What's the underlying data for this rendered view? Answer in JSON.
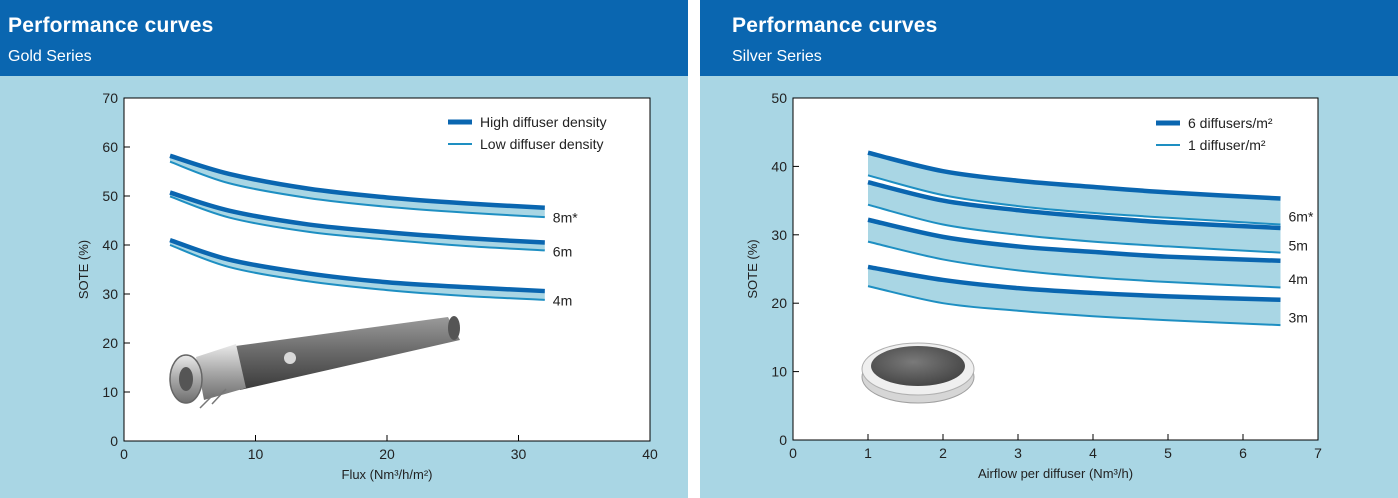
{
  "colors": {
    "banner": "#0a66b0",
    "panel_background": "#a9d6e4",
    "band_fill": "#a9d6e4",
    "high_line": "#0a66b0",
    "low_line": "#1e8fc2"
  },
  "icons": {
    "left_product": "tubular-membrane-diffuser-image",
    "right_product": "disc-diffuser-image"
  },
  "left_panel": {
    "title": "Performance curves",
    "subtitle": "Gold Series"
  },
  "right_panel": {
    "title": "Performance curves",
    "subtitle": "Silver Series"
  },
  "chart_data": [
    {
      "type": "line",
      "title": "",
      "xlabel": "Flux (Nm³/h/m²)",
      "ylabel": "SOTE (%)",
      "xlim": [
        0,
        40
      ],
      "ylim": [
        0,
        70
      ],
      "xticks": [
        0,
        10,
        20,
        30,
        40
      ],
      "yticks": [
        0,
        10,
        20,
        30,
        40,
        50,
        60,
        70
      ],
      "grid": false,
      "legend_position": "top-right",
      "legend": [
        "High diffuser density",
        "Low diffuser density"
      ],
      "series": [
        {
          "label": "8m*",
          "x": [
            3.5,
            8,
            14,
            20,
            26,
            32
          ],
          "high": [
            58.2,
            54.5,
            51.5,
            49.7,
            48.5,
            47.6
          ],
          "low": [
            57.0,
            52.6,
            49.6,
            47.8,
            46.6,
            45.7
          ]
        },
        {
          "label": "6m",
          "x": [
            3.5,
            8,
            14,
            20,
            26,
            32
          ],
          "high": [
            50.7,
            47.0,
            44.2,
            42.6,
            41.4,
            40.5
          ],
          "low": [
            49.9,
            45.6,
            42.7,
            41.1,
            39.8,
            38.9
          ]
        },
        {
          "label": "4m",
          "x": [
            3.5,
            8,
            14,
            20,
            26,
            32
          ],
          "high": [
            41.0,
            37.0,
            34.2,
            32.4,
            31.4,
            30.6
          ],
          "low": [
            40.0,
            35.5,
            32.6,
            30.8,
            29.6,
            28.8
          ]
        }
      ]
    },
    {
      "type": "line",
      "title": "",
      "xlabel": "Airflow per diffuser (Nm³/h)",
      "ylabel": "SOTE (%)",
      "xlim": [
        0,
        7
      ],
      "ylim": [
        0,
        50
      ],
      "xticks": [
        0,
        1,
        2,
        3,
        4,
        5,
        6,
        7
      ],
      "yticks": [
        0,
        10,
        20,
        30,
        40,
        50
      ],
      "grid": false,
      "legend_position": "top-right",
      "legend": [
        "6 diffusers/m²",
        "1 diffuser/m²"
      ],
      "series": [
        {
          "label": "6m*",
          "x": [
            1,
            2,
            3,
            4,
            5,
            6.5
          ],
          "high": [
            42.0,
            39.3,
            37.9,
            37.0,
            36.2,
            35.3
          ],
          "low": [
            38.7,
            35.8,
            34.2,
            33.2,
            32.5,
            31.5
          ]
        },
        {
          "label": "5m",
          "x": [
            1,
            2,
            3,
            4,
            5,
            6.5
          ],
          "high": [
            37.7,
            35.0,
            33.6,
            32.6,
            31.8,
            31.0
          ],
          "low": [
            34.4,
            31.5,
            30.0,
            29.0,
            28.3,
            27.4
          ]
        },
        {
          "label": "4m",
          "x": [
            1,
            2,
            3,
            4,
            5,
            6.5
          ],
          "high": [
            32.2,
            29.7,
            28.3,
            27.5,
            26.8,
            26.2
          ],
          "low": [
            29.0,
            26.4,
            24.8,
            23.8,
            23.1,
            22.3
          ]
        },
        {
          "label": "3m",
          "x": [
            1,
            2,
            3,
            4,
            5,
            6.5
          ],
          "high": [
            25.3,
            23.4,
            22.2,
            21.5,
            21.0,
            20.5
          ],
          "low": [
            22.5,
            20.0,
            18.9,
            18.1,
            17.5,
            16.8
          ]
        }
      ]
    }
  ]
}
